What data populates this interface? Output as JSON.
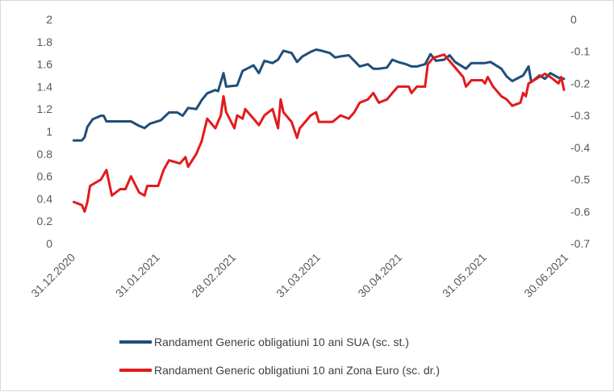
{
  "chart_data": {
    "type": "line",
    "title": "",
    "xlabel": "",
    "ylabel": "",
    "x_tick_labels": [
      "31.12.2020",
      "31.01.2021",
      "28.02.2021",
      "31.03.2021",
      "30.04.2021",
      "31.05.2021",
      "30.06.2021"
    ],
    "y_left": {
      "ylim": [
        0,
        2
      ],
      "ticks": [
        "2",
        "1.8",
        "1.6",
        "1.4",
        "1.2",
        "1",
        "0.8",
        "0.6",
        "0.4",
        "0.2",
        "0"
      ]
    },
    "y_right": {
      "ylim": [
        -0.7,
        0
      ],
      "ticks": [
        "0",
        "-0.1",
        "-0.2",
        "-0.3",
        "-0.4",
        "-0.5",
        "-0.6",
        "-0.7"
      ]
    },
    "grid": false,
    "legend_position": "bottom",
    "series": [
      {
        "name": "Randament Generic obligatiuni 10 ani SUA (sc. st.)",
        "axis": "left",
        "color": "#1f4e79",
        "points": [
          [
            "2021-01-01",
            0.92
          ],
          [
            "2021-01-04",
            0.92
          ],
          [
            "2021-01-05",
            0.95
          ],
          [
            "2021-01-06",
            1.04
          ],
          [
            "2021-01-08",
            1.11
          ],
          [
            "2021-01-11",
            1.14
          ],
          [
            "2021-01-12",
            1.14
          ],
          [
            "2021-01-13",
            1.09
          ],
          [
            "2021-01-15",
            1.09
          ],
          [
            "2021-01-19",
            1.09
          ],
          [
            "2021-01-22",
            1.09
          ],
          [
            "2021-01-25",
            1.05
          ],
          [
            "2021-01-27",
            1.03
          ],
          [
            "2021-01-29",
            1.07
          ],
          [
            "2021-02-02",
            1.1
          ],
          [
            "2021-02-05",
            1.17
          ],
          [
            "2021-02-08",
            1.17
          ],
          [
            "2021-02-10",
            1.14
          ],
          [
            "2021-02-12",
            1.21
          ],
          [
            "2021-02-15",
            1.2
          ],
          [
            "2021-02-17",
            1.28
          ],
          [
            "2021-02-19",
            1.34
          ],
          [
            "2021-02-22",
            1.37
          ],
          [
            "2021-02-23",
            1.36
          ],
          [
            "2021-02-25",
            1.52
          ],
          [
            "2021-02-26",
            1.4
          ],
          [
            "2021-03-02",
            1.41
          ],
          [
            "2021-03-04",
            1.54
          ],
          [
            "2021-03-08",
            1.59
          ],
          [
            "2021-03-10",
            1.52
          ],
          [
            "2021-03-12",
            1.63
          ],
          [
            "2021-03-15",
            1.61
          ],
          [
            "2021-03-17",
            1.64
          ],
          [
            "2021-03-19",
            1.72
          ],
          [
            "2021-03-22",
            1.7
          ],
          [
            "2021-03-24",
            1.62
          ],
          [
            "2021-03-26",
            1.67
          ],
          [
            "2021-03-29",
            1.71
          ],
          [
            "2021-03-31",
            1.73
          ],
          [
            "2021-04-02",
            1.72
          ],
          [
            "2021-04-05",
            1.7
          ],
          [
            "2021-04-07",
            1.66
          ],
          [
            "2021-04-09",
            1.67
          ],
          [
            "2021-04-12",
            1.68
          ],
          [
            "2021-04-14",
            1.63
          ],
          [
            "2021-04-16",
            1.58
          ],
          [
            "2021-04-19",
            1.6
          ],
          [
            "2021-04-21",
            1.56
          ],
          [
            "2021-04-23",
            1.56
          ],
          [
            "2021-04-26",
            1.57
          ],
          [
            "2021-04-28",
            1.64
          ],
          [
            "2021-04-30",
            1.62
          ],
          [
            "2021-05-03",
            1.6
          ],
          [
            "2021-05-05",
            1.58
          ],
          [
            "2021-05-07",
            1.58
          ],
          [
            "2021-05-10",
            1.6
          ],
          [
            "2021-05-12",
            1.69
          ],
          [
            "2021-05-14",
            1.63
          ],
          [
            "2021-05-17",
            1.64
          ],
          [
            "2021-05-19",
            1.68
          ],
          [
            "2021-05-21",
            1.62
          ],
          [
            "2021-05-25",
            1.56
          ],
          [
            "2021-05-27",
            1.61
          ],
          [
            "2021-06-01",
            1.61
          ],
          [
            "2021-06-03",
            1.62
          ],
          [
            "2021-06-07",
            1.56
          ],
          [
            "2021-06-09",
            1.49
          ],
          [
            "2021-06-11",
            1.45
          ],
          [
            "2021-06-15",
            1.5
          ],
          [
            "2021-06-17",
            1.58
          ],
          [
            "2021-06-18",
            1.44
          ],
          [
            "2021-06-21",
            1.5
          ],
          [
            "2021-06-23",
            1.47
          ],
          [
            "2021-06-25",
            1.52
          ],
          [
            "2021-06-28",
            1.48
          ],
          [
            "2021-06-30",
            1.47
          ]
        ]
      },
      {
        "name": "Randament Generic obligatiuni 10 ani Zona Euro (sc. dr.)",
        "axis": "right",
        "color": "#e31a1c",
        "points": [
          [
            "2021-01-01",
            -0.57
          ],
          [
            "2021-01-04",
            -0.58
          ],
          [
            "2021-01-05",
            -0.6
          ],
          [
            "2021-01-06",
            -0.57
          ],
          [
            "2021-01-07",
            -0.52
          ],
          [
            "2021-01-11",
            -0.5
          ],
          [
            "2021-01-13",
            -0.47
          ],
          [
            "2021-01-14",
            -0.51
          ],
          [
            "2021-01-15",
            -0.55
          ],
          [
            "2021-01-18",
            -0.53
          ],
          [
            "2021-01-20",
            -0.53
          ],
          [
            "2021-01-22",
            -0.49
          ],
          [
            "2021-01-25",
            -0.54
          ],
          [
            "2021-01-27",
            -0.55
          ],
          [
            "2021-01-28",
            -0.52
          ],
          [
            "2021-02-01",
            -0.52
          ],
          [
            "2021-02-03",
            -0.47
          ],
          [
            "2021-02-05",
            -0.44
          ],
          [
            "2021-02-09",
            -0.45
          ],
          [
            "2021-02-11",
            -0.43
          ],
          [
            "2021-02-12",
            -0.46
          ],
          [
            "2021-02-15",
            -0.42
          ],
          [
            "2021-02-17",
            -0.38
          ],
          [
            "2021-02-19",
            -0.31
          ],
          [
            "2021-02-22",
            -0.34
          ],
          [
            "2021-02-24",
            -0.3
          ],
          [
            "2021-02-25",
            -0.24
          ],
          [
            "2021-02-26",
            -0.29
          ],
          [
            "2021-03-01",
            -0.34
          ],
          [
            "2021-03-02",
            -0.3
          ],
          [
            "2021-03-04",
            -0.31
          ],
          [
            "2021-03-05",
            -0.28
          ],
          [
            "2021-03-08",
            -0.31
          ],
          [
            "2021-03-10",
            -0.33
          ],
          [
            "2021-03-12",
            -0.3
          ],
          [
            "2021-03-15",
            -0.28
          ],
          [
            "2021-03-17",
            -0.34
          ],
          [
            "2021-03-18",
            -0.25
          ],
          [
            "2021-03-19",
            -0.29
          ],
          [
            "2021-03-22",
            -0.32
          ],
          [
            "2021-03-24",
            -0.37
          ],
          [
            "2021-03-25",
            -0.34
          ],
          [
            "2021-03-26",
            -0.33
          ],
          [
            "2021-03-29",
            -0.3
          ],
          [
            "2021-03-31",
            -0.29
          ],
          [
            "2021-04-01",
            -0.32
          ],
          [
            "2021-04-06",
            -0.32
          ],
          [
            "2021-04-09",
            -0.3
          ],
          [
            "2021-04-12",
            -0.31
          ],
          [
            "2021-04-14",
            -0.29
          ],
          [
            "2021-04-16",
            -0.26
          ],
          [
            "2021-04-19",
            -0.25
          ],
          [
            "2021-04-21",
            -0.23
          ],
          [
            "2021-04-23",
            -0.26
          ],
          [
            "2021-04-26",
            -0.25
          ],
          [
            "2021-04-28",
            -0.23
          ],
          [
            "2021-04-30",
            -0.21
          ],
          [
            "2021-05-04",
            -0.21
          ],
          [
            "2021-05-05",
            -0.23
          ],
          [
            "2021-05-07",
            -0.21
          ],
          [
            "2021-05-10",
            -0.21
          ],
          [
            "2021-05-11",
            -0.14
          ],
          [
            "2021-05-13",
            -0.12
          ],
          [
            "2021-05-17",
            -0.11
          ],
          [
            "2021-05-18",
            -0.12
          ],
          [
            "2021-05-20",
            -0.14
          ],
          [
            "2021-05-24",
            -0.18
          ],
          [
            "2021-05-25",
            -0.21
          ],
          [
            "2021-05-27",
            -0.19
          ],
          [
            "2021-05-31",
            -0.19
          ],
          [
            "2021-06-01",
            -0.2
          ],
          [
            "2021-06-02",
            -0.18
          ],
          [
            "2021-06-04",
            -0.21
          ],
          [
            "2021-06-07",
            -0.24
          ],
          [
            "2021-06-09",
            -0.25
          ],
          [
            "2021-06-11",
            -0.27
          ],
          [
            "2021-06-14",
            -0.26
          ],
          [
            "2021-06-15",
            -0.23
          ],
          [
            "2021-06-16",
            -0.24
          ],
          [
            "2021-06-17",
            -0.2
          ],
          [
            "2021-06-21",
            -0.18
          ],
          [
            "2021-06-23",
            -0.17
          ],
          [
            "2021-06-25",
            -0.18
          ],
          [
            "2021-06-28",
            -0.2
          ],
          [
            "2021-06-29",
            -0.18
          ],
          [
            "2021-06-30",
            -0.22
          ]
        ]
      }
    ]
  }
}
